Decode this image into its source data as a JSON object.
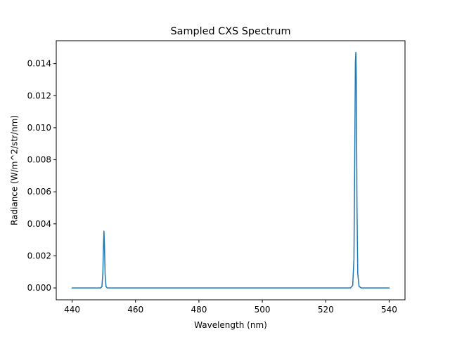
{
  "chart_data": {
    "type": "line",
    "title": "Sampled CXS Spectrum",
    "xlabel": "Wavelength (nm)",
    "ylabel": "Radiance (W/m^2/str/nm)",
    "xlim": [
      435.0,
      545.0
    ],
    "ylim": [
      -0.00074,
      0.01543
    ],
    "xticks": [
      440,
      460,
      480,
      500,
      520,
      540
    ],
    "yticks": [
      0.0,
      0.002,
      0.004,
      0.006,
      0.008,
      0.01,
      0.012,
      0.014
    ],
    "ytick_labels": [
      "0.000",
      "0.002",
      "0.004",
      "0.006",
      "0.008",
      "0.010",
      "0.012",
      "0.014"
    ],
    "grid": false,
    "legend": "none",
    "series": [
      {
        "color": "#1f77b4",
        "x": [
          440.0,
          449.0,
          449.4,
          449.7,
          449.9,
          450.05,
          450.2,
          450.4,
          450.7,
          451.1,
          452.0,
          470.0,
          490.0,
          510.0,
          527.8,
          528.5,
          528.9,
          529.15,
          529.35,
          529.5,
          529.65,
          529.85,
          530.1,
          530.5,
          531.2,
          540.0
        ],
        "y": [
          0.0,
          0.0,
          8e-05,
          0.0009,
          0.0027,
          0.00355,
          0.0027,
          0.0009,
          8e-05,
          0.0,
          0.0,
          0.0,
          0.0,
          0.0,
          0.0,
          0.00015,
          0.0018,
          0.0082,
          0.0141,
          0.0147,
          0.0128,
          0.0052,
          0.0009,
          0.0001,
          0.0,
          0.0
        ]
      }
    ]
  }
}
